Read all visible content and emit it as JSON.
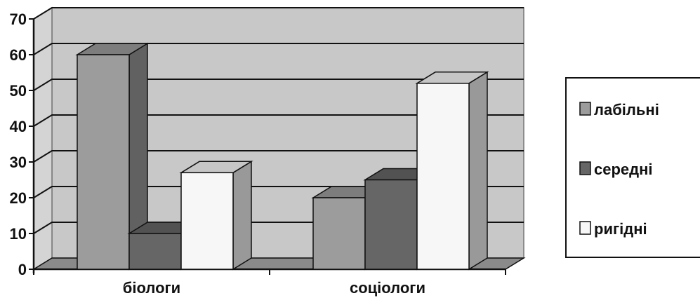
{
  "chart_data": {
    "type": "bar",
    "categories": [
      "біологи",
      "соціологи"
    ],
    "series": [
      {
        "name": "лабільні",
        "values": [
          60,
          20
        ],
        "color": "#9c9c9c"
      },
      {
        "name": "середні",
        "values": [
          10,
          25
        ],
        "color": "#666666"
      },
      {
        "name": "ригідні",
        "values": [
          27,
          52
        ],
        "color": "#f7f7f7"
      }
    ],
    "y_ticks": [
      "0",
      "10",
      "20",
      "30",
      "40",
      "50",
      "60",
      "70"
    ],
    "ylim": [
      0,
      70
    ],
    "grid": true,
    "legend_position": "right",
    "wall_color": "#c8c8c8",
    "floor_color": "#8a8a8a"
  }
}
